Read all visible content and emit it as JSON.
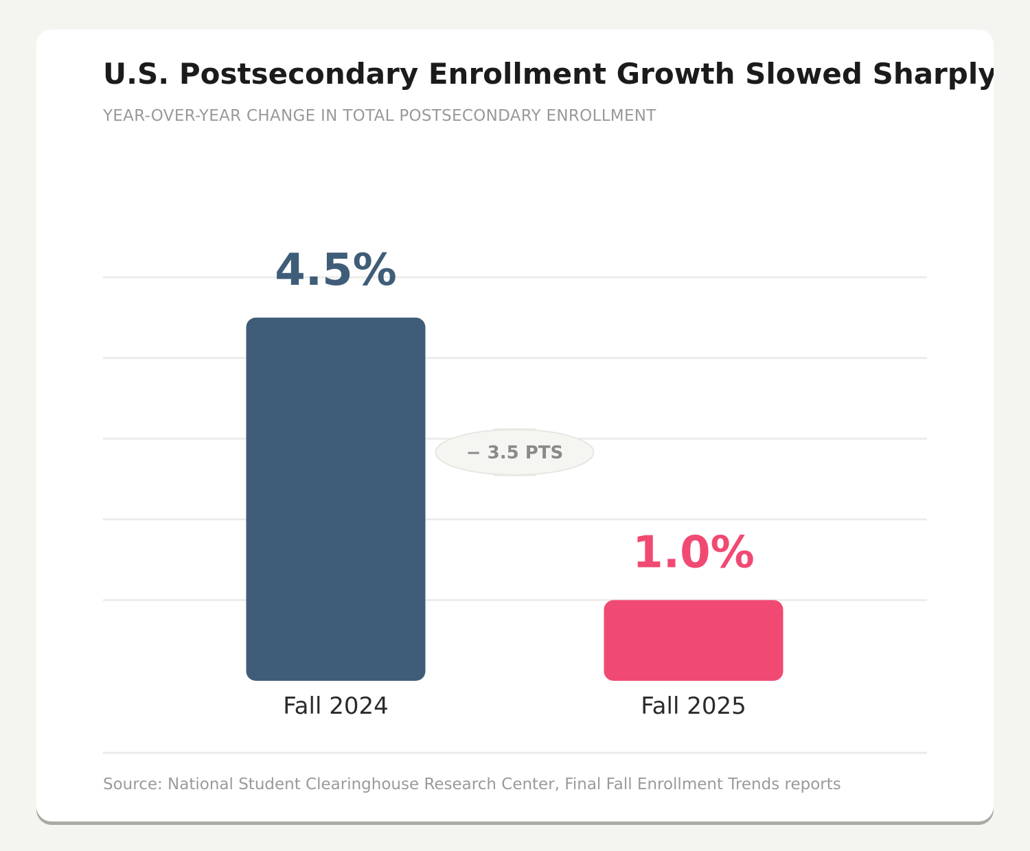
{
  "chart_data": {
    "type": "bar",
    "title": "U.S. Postsecondary Enrollment Growth Slowed Sharply",
    "subtitle": "YEAR-OVER-YEAR CHANGE IN TOTAL POSTSECONDARY ENROLLMENT",
    "categories": [
      "Fall 2024",
      "Fall 2025"
    ],
    "values": [
      4.5,
      1.0
    ],
    "value_labels": [
      "4.5%",
      "1.0%"
    ],
    "colors": [
      "#3f5d78",
      "#f04a72"
    ],
    "ylim": [
      0,
      5
    ],
    "grid": true,
    "annotation": "− 3.5 PTS",
    "source": "Source: National Student Clearinghouse Research Center, Final Fall Enrollment Trends reports"
  }
}
